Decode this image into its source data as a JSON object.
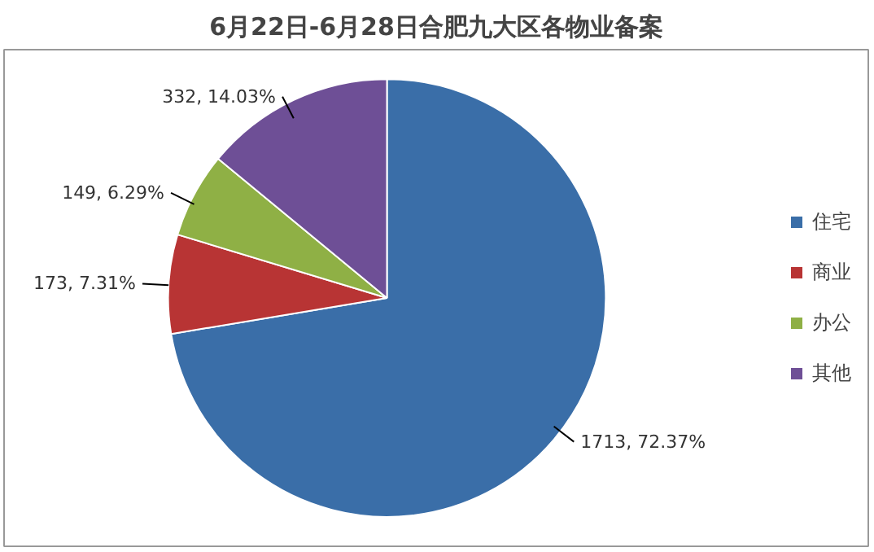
{
  "chart_data": {
    "type": "pie",
    "title": "6月22日-6月28日合肥九大区各物业备案",
    "categories": [
      "住宅",
      "商业",
      "办公",
      "其他"
    ],
    "values": [
      1713,
      173,
      149,
      332
    ],
    "colors": [
      "#3a6ea8",
      "#b83434",
      "#8fb045",
      "#6e4f96"
    ],
    "value_labels": [
      "1713, 72.37%",
      "173, 7.31%",
      "149, 6.29%",
      "332, 14.03%"
    ],
    "legend": "right"
  }
}
